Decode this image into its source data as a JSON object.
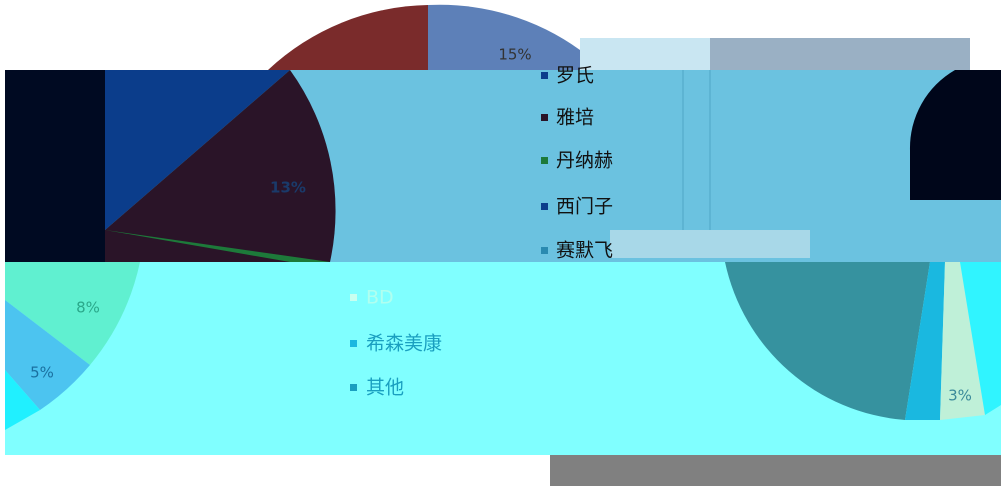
{
  "legend_upper": [
    "罗氏",
    "雅培",
    "丹纳赫",
    "西门子",
    "赛默飞"
  ],
  "legend_lower": [
    "BD",
    "希森美康",
    "其他"
  ],
  "slice_labels": [
    "15%",
    "13%",
    "8%",
    "5%",
    "3%"
  ]
}
